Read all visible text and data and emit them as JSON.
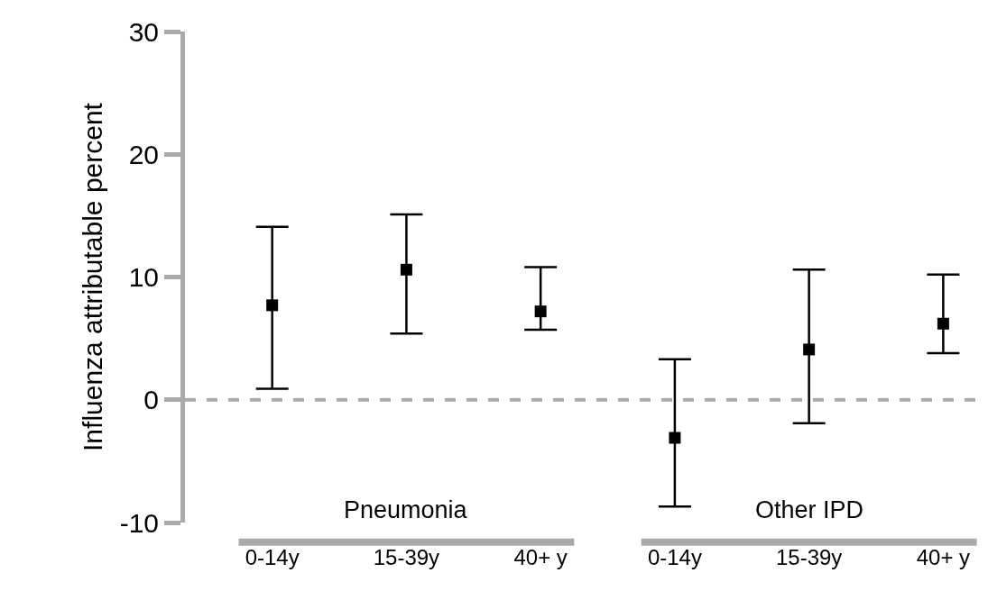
{
  "chart_data": {
    "type": "scatter",
    "ylabel": "Influenza attributable percent",
    "categories": [
      "0-14y",
      "15-39y",
      "40+ y",
      "0-14y",
      "15-39y",
      "40+ y"
    ],
    "values": [
      7.7,
      10.6,
      7.2,
      -3.1,
      4.1,
      6.2
    ],
    "errors": [
      [
        0.9,
        14.1
      ],
      [
        5.4,
        15.1
      ],
      [
        5.7,
        10.8
      ],
      [
        -8.7,
        3.3
      ],
      [
        -1.9,
        10.6
      ],
      [
        3.8,
        10.2
      ]
    ],
    "color": "#000000",
    "marker": "square",
    "ylim": [
      -10,
      30
    ],
    "yticks": [
      -10,
      0,
      10,
      20,
      30
    ],
    "ref_lines": [
      {
        "axis": "y",
        "value": 0,
        "color": "#aaaaaa",
        "line_style": "dashed"
      }
    ],
    "annotations": [
      "Pneumonia",
      "Other IPD"
    ],
    "grid": false
  }
}
